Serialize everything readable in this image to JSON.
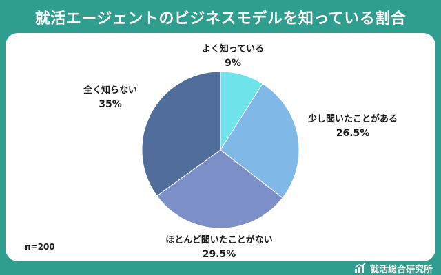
{
  "title": "就活エージェントのビジネスモデルを知っている割合",
  "sample_note": "n=200",
  "brand": {
    "icon": "bar-chart-icon",
    "label": "就活総合研究所"
  },
  "chart_data": {
    "type": "pie",
    "title": "就活エージェントのビジネスモデルを知っている割合",
    "start_angle_deg": 0,
    "direction": "clockwise",
    "slices": [
      {
        "label": "よく知っている",
        "value": 9,
        "display": "9%",
        "color": "#6ee3ea"
      },
      {
        "label": "少し聞いたことがある",
        "value": 26.5,
        "display": "26.5%",
        "color": "#80b8e8"
      },
      {
        "label": "ほとんど聞いたことがない",
        "value": 29.5,
        "display": "29.5%",
        "color": "#7d8fc7"
      },
      {
        "label": "全く知らない",
        "value": 35,
        "display": "35%",
        "color": "#506d9b"
      }
    ]
  }
}
